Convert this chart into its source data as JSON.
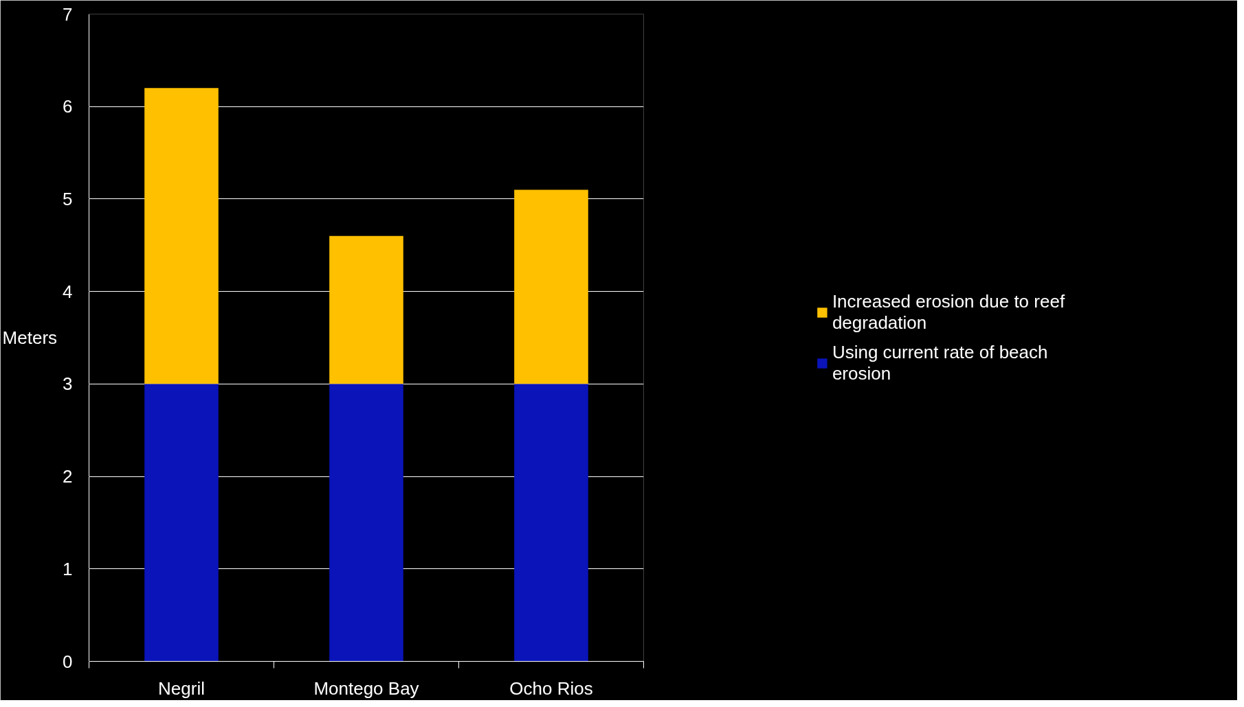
{
  "chart_data": {
    "type": "bar",
    "stacked": true,
    "ylabel": "Meters",
    "categories": [
      "Negril",
      "Montego Bay",
      "Ocho Rios"
    ],
    "series": [
      {
        "name": "Using current rate of beach erosion",
        "color": "#0a14b8",
        "values": [
          3,
          3,
          3
        ]
      },
      {
        "name": "Increased erosion due to reef degradation",
        "color": "#ffc000",
        "values": [
          3.2,
          1.6,
          2.1
        ]
      }
    ],
    "ylim": [
      0,
      7
    ],
    "yticks": [
      0,
      1,
      2,
      3,
      4,
      5,
      6,
      7
    ],
    "grid": "y",
    "legend": "right"
  }
}
